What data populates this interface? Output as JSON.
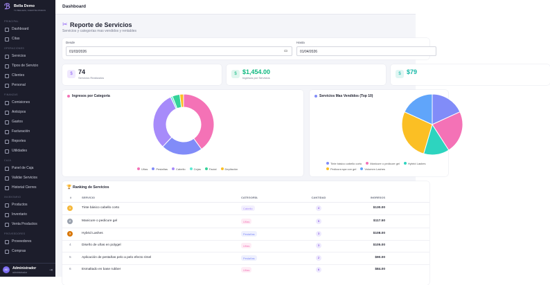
{
  "sidebar": {
    "brand": "Bella Demo",
    "tagline": "TU BELLEZA, NUESTRA PASION",
    "sections": [
      {
        "title": "PRINCIPAL",
        "items": [
          "Dashboard",
          "Citas"
        ]
      },
      {
        "title": "OPERACIONES",
        "items": [
          "Servicios",
          "Tipos de Servicio",
          "Clientes",
          "Personal"
        ]
      },
      {
        "title": "FINANZAS",
        "items": [
          "Comisiones",
          "Anticipos",
          "Gastos",
          "Facturación",
          "Reportes",
          "Utilidades"
        ]
      },
      {
        "title": "CAJA",
        "items": [
          "Panel de Caja",
          "Validar Servicios",
          "Historial Cierres"
        ]
      },
      {
        "title": "INVENTARIO",
        "items": [
          "Productos",
          "Inventario",
          "Venta Productos"
        ]
      },
      {
        "title": "PROVEEDORES",
        "items": [
          "Proveedores",
          "Compras"
        ]
      }
    ],
    "user": {
      "initials": "AD",
      "name": "Administrador",
      "role": "administrador"
    }
  },
  "header": {
    "title": "Dashboard"
  },
  "report": {
    "title": "Reporte de Servicios",
    "subtitle": "Servicios y categorías mas vendidos y rentables",
    "filters": [
      {
        "label": "Desde",
        "value": "01/03/2026"
      },
      {
        "label": "Hasta",
        "value": "01/04/2026"
      }
    ],
    "stats": [
      {
        "value": "74",
        "label": "Servicios Realizados",
        "color": "#8b5cf6"
      },
      {
        "value": "$1,454.00",
        "label": "Ingresos por Servicios",
        "color": "#10b981"
      },
      {
        "value": "$79",
        "color": "#14b8a6"
      }
    ]
  },
  "chart_data": [
    {
      "type": "pie",
      "title": "Ingresos por Categoría",
      "categories": [
        "Uñas",
        "Pestañas",
        "Cabello",
        "Cejas",
        "Facial",
        "Depilación"
      ],
      "values": [
        40,
        22,
        31,
        1,
        4,
        2
      ],
      "colors": [
        "#f472b6",
        "#818cf8",
        "#a78bfa",
        "#5eead4",
        "#34d399",
        "#fbbf24"
      ]
    },
    {
      "type": "pie",
      "title": "Servicios Mas Vendidos (Top 10)",
      "categories": [
        "Tinte básico cabello corto",
        "Manicure o pedicure gel",
        "Hybrid Lashes",
        "Pedicura spa con gel",
        "Volumen Lashes"
      ],
      "values": [
        4,
        5,
        3,
        6,
        4
      ],
      "colors": [
        "#818cf8",
        "#f472b6",
        "#2dd4bf",
        "#fbbf24",
        "#60a5fa"
      ]
    }
  ],
  "ranking": {
    "title": "Ranking de Servicios",
    "columns": [
      "#",
      "SERVICIO",
      "CATEGORÍA",
      "CANTIDAD",
      "INGRESOS"
    ],
    "rows": [
      [
        "1",
        "Tinte básico cabello corto",
        "Cabello",
        "4",
        "$130.00"
      ],
      [
        "2",
        "Manicure o pedicure gel",
        "Uñas",
        "5",
        "$117.50"
      ],
      [
        "3",
        "Hybrid Lashes",
        "Pestañas",
        "3",
        "$108.00"
      ],
      [
        "4",
        "Diseño de uñas en polygel",
        "Uñas",
        "3",
        "$105.00"
      ],
      [
        "5",
        "Aplicación de pestañas pelo a pelo efecto rimel",
        "Pestañas",
        "2",
        "$90.00"
      ],
      [
        "6",
        "Esmaltado en base rubber",
        "Uñas",
        "6",
        "$84.00"
      ]
    ]
  }
}
